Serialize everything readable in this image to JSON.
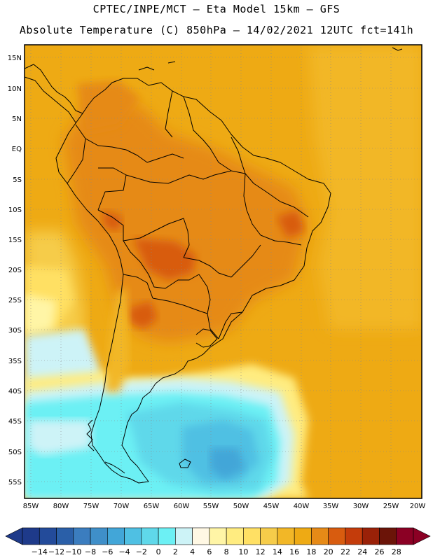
{
  "header": {
    "line1": "CPTEC/INPE/MCT –  Eta Model 15km – GFS",
    "line2": "Absolute Temperature (C) 850hPa – 14/02/2021 12UTC fct=141h"
  },
  "axes": {
    "lat_labels": [
      "15N",
      "10N",
      "5N",
      "EQ",
      "5S",
      "10S",
      "15S",
      "20S",
      "25S",
      "30S",
      "35S",
      "40S",
      "45S",
      "50S",
      "55S"
    ],
    "lon_labels": [
      "85W",
      "80W",
      "75W",
      "70W",
      "65W",
      "60W",
      "55W",
      "50W",
      "45W",
      "40W",
      "35W",
      "30W",
      "25W",
      "20W"
    ]
  },
  "colorbar": {
    "labels": [
      "-14",
      "-12",
      "-10",
      "-8",
      "-6",
      "-4",
      "-2",
      "0",
      "2",
      "4",
      "6",
      "8",
      "10",
      "12",
      "14",
      "16",
      "18",
      "20",
      "22",
      "24",
      "26",
      "28"
    ],
    "colors": [
      "#1e3a8a",
      "#234b9a",
      "#2a5fa8",
      "#3b7dbf",
      "#3f8fc9",
      "#42a6d8",
      "#4fc0e3",
      "#5fd8ea",
      "#6cf0f4",
      "#cdf3f7",
      "#fff8e4",
      "#fff5a6",
      "#ffec80",
      "#ffe064",
      "#f6cc4a",
      "#f2b727",
      "#eeaa14",
      "#e68a17",
      "#d85c0f",
      "#c43c0b",
      "#9a2108",
      "#6b1408",
      "#8b0024"
    ]
  },
  "legend_units": "C"
}
